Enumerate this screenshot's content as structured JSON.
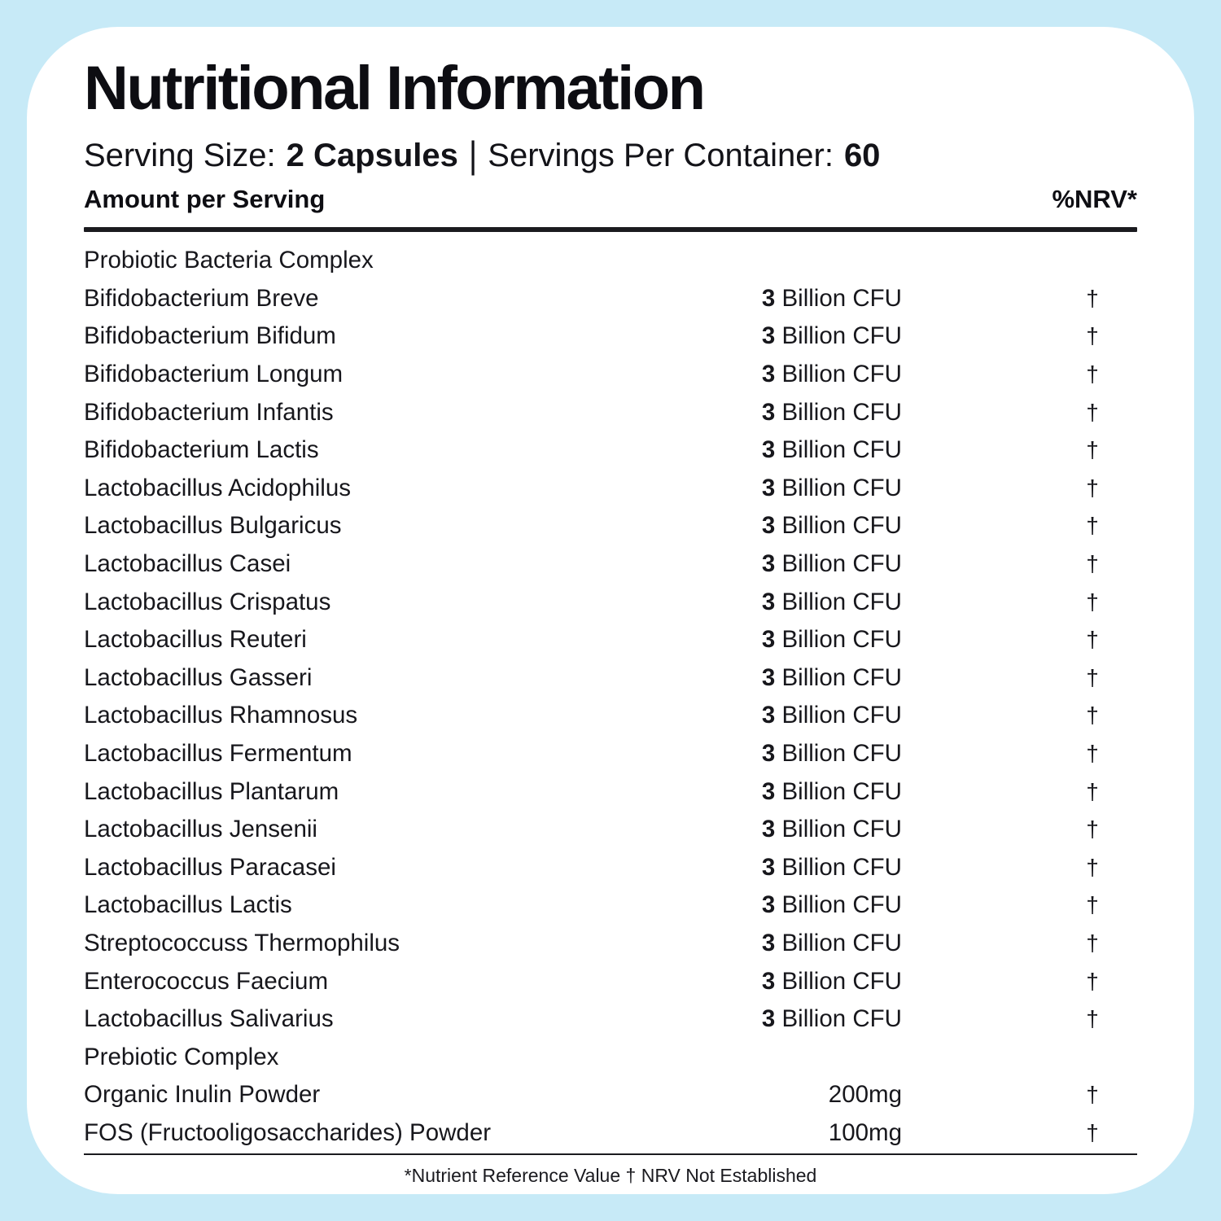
{
  "theme": {
    "background_color": "#c7eaf7",
    "card_color": "#ffffff",
    "text_color": "#131318"
  },
  "header": {
    "title": "Nutritional Information",
    "serving_size_label": "Serving Size:",
    "serving_size_value": "2 Capsules",
    "separator": "|",
    "servings_label": "Servings Per Container:",
    "servings_value": "60",
    "amount_col_label": "Amount per Serving",
    "nrv_col_label": "%NRV*"
  },
  "table": {
    "rows": [
      {
        "name": "Probiotic Bacteria Complex",
        "amount_bold": "",
        "amount_rest": "",
        "nrv": "",
        "section": true
      },
      {
        "name": "Bifidobacterium Breve",
        "amount_bold": "3",
        "amount_rest": " Billion CFU",
        "nrv": "†",
        "section": false
      },
      {
        "name": "Bifidobacterium Bifidum",
        "amount_bold": "3",
        "amount_rest": " Billion CFU",
        "nrv": "†",
        "section": false
      },
      {
        "name": "Bifidobacterium Longum",
        "amount_bold": "3",
        "amount_rest": " Billion CFU",
        "nrv": "†",
        "section": false
      },
      {
        "name": "Bifidobacterium Infantis",
        "amount_bold": "3",
        "amount_rest": " Billion CFU",
        "nrv": "†",
        "section": false
      },
      {
        "name": "Bifidobacterium Lactis",
        "amount_bold": "3",
        "amount_rest": " Billion CFU",
        "nrv": "†",
        "section": false
      },
      {
        "name": "Lactobacillus Acidophilus",
        "amount_bold": "3",
        "amount_rest": " Billion CFU",
        "nrv": "†",
        "section": false
      },
      {
        "name": "Lactobacillus Bulgaricus",
        "amount_bold": "3",
        "amount_rest": " Billion CFU",
        "nrv": "†",
        "section": false
      },
      {
        "name": "Lactobacillus Casei",
        "amount_bold": "3",
        "amount_rest": " Billion CFU",
        "nrv": "†",
        "section": false
      },
      {
        "name": "Lactobacillus Crispatus",
        "amount_bold": "3",
        "amount_rest": " Billion CFU",
        "nrv": "†",
        "section": false
      },
      {
        "name": "Lactobacillus Reuteri",
        "amount_bold": "3",
        "amount_rest": " Billion CFU",
        "nrv": "†",
        "section": false
      },
      {
        "name": "Lactobacillus Gasseri",
        "amount_bold": "3",
        "amount_rest": " Billion CFU",
        "nrv": "†",
        "section": false
      },
      {
        "name": "Lactobacillus Rhamnosus",
        "amount_bold": "3",
        "amount_rest": " Billion CFU",
        "nrv": "†",
        "section": false
      },
      {
        "name": "Lactobacillus Fermentum",
        "amount_bold": "3",
        "amount_rest": " Billion CFU",
        "nrv": "†",
        "section": false
      },
      {
        "name": "Lactobacillus Plantarum",
        "amount_bold": "3",
        "amount_rest": " Billion CFU",
        "nrv": "†",
        "section": false
      },
      {
        "name": "Lactobacillus Jensenii",
        "amount_bold": "3",
        "amount_rest": " Billion CFU",
        "nrv": "†",
        "section": false
      },
      {
        "name": "Lactobacillus Paracasei",
        "amount_bold": "3",
        "amount_rest": " Billion CFU",
        "nrv": "†",
        "section": false
      },
      {
        "name": "Lactobacillus Lactis",
        "amount_bold": "3",
        "amount_rest": " Billion CFU",
        "nrv": "†",
        "section": false
      },
      {
        "name": "Streptococcuss Thermophilus",
        "amount_bold": "3",
        "amount_rest": " Billion CFU",
        "nrv": "†",
        "section": false
      },
      {
        "name": "Enterococcus Faecium",
        "amount_bold": "3",
        "amount_rest": " Billion CFU",
        "nrv": "†",
        "section": false
      },
      {
        "name": "Lactobacillus Salivarius",
        "amount_bold": "3",
        "amount_rest": " Billion CFU",
        "nrv": "†",
        "section": false
      },
      {
        "name": "Prebiotic Complex",
        "amount_bold": "",
        "amount_rest": "",
        "nrv": "",
        "section": true
      },
      {
        "name": "Organic Inulin Powder",
        "amount_bold": "",
        "amount_rest": "200mg",
        "nrv": "†",
        "section": false
      },
      {
        "name": "FOS (Fructooligosaccharides) Powder",
        "amount_bold": "",
        "amount_rest": "100mg",
        "nrv": "†",
        "section": false
      }
    ]
  },
  "footer": {
    "note": "*Nutrient Reference Value † NRV Not Established"
  }
}
